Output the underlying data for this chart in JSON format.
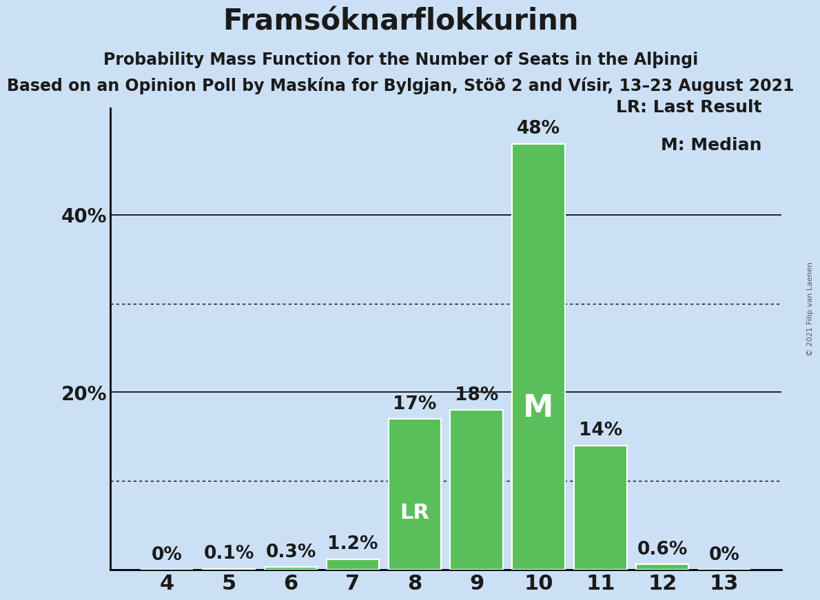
{
  "title": "Framsóknarflokkurinn",
  "subtitle1": "Probability Mass Function for the Number of Seats in the Alþingi",
  "subtitle2": "Based on an Opinion Poll by Maskína for Bylgjan, Stöð 2 and Vísir, 13–23 August 2021",
  "copyright": "© 2021 Filip van Laenen",
  "seats": [
    4,
    5,
    6,
    7,
    8,
    9,
    10,
    11,
    12,
    13
  ],
  "probabilities": [
    0.0,
    0.1,
    0.3,
    1.2,
    17.0,
    18.0,
    48.0,
    14.0,
    0.6,
    0.0
  ],
  "bar_color": "#5abf5a",
  "background_color": "#cce0f5",
  "bar_edge_color": "white",
  "last_result_seat": 8,
  "median_seat": 10,
  "legend_lr": "LR: Last Result",
  "legend_m": "M: Median",
  "solid_gridlines": [
    20,
    40
  ],
  "dotted_gridlines": [
    10,
    30
  ],
  "ylim": [
    0,
    52
  ],
  "ytick_positions": [
    20,
    40
  ],
  "ytick_labels": [
    "20%",
    "40%"
  ],
  "title_fontsize": 30,
  "subtitle1_fontsize": 17,
  "subtitle2_fontsize": 17,
  "bar_label_fontsize": 19,
  "ytick_fontsize": 20,
  "xtick_fontsize": 22,
  "legend_fontsize": 18,
  "label_color": "#1a1a1a",
  "lr_fontsize": 22,
  "m_fontsize": 32,
  "copyright_fontsize": 8
}
